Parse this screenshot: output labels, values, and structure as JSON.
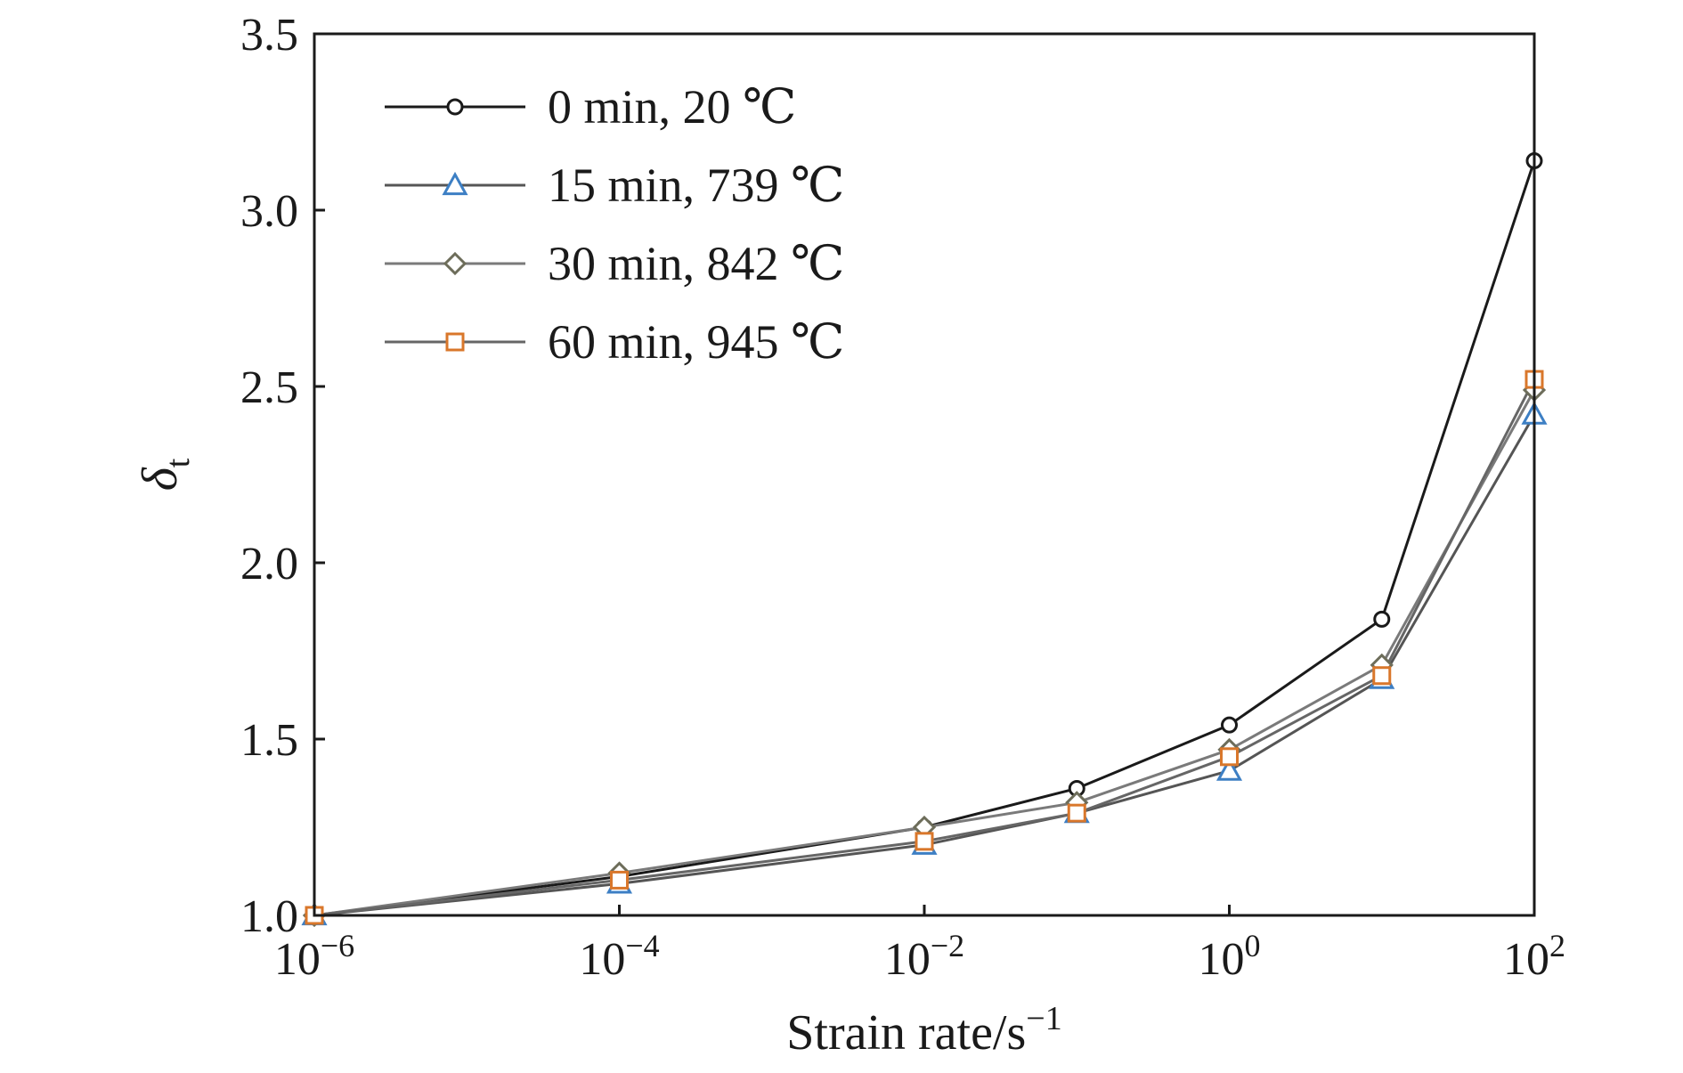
{
  "chart_data": {
    "type": "line",
    "xscale": "log",
    "xlim": [
      1e-06,
      100
    ],
    "ylim": [
      1.0,
      3.5
    ],
    "grid": false,
    "legend_position": "top-left",
    "x_ticks": [
      {
        "value": 1e-06,
        "base": "10",
        "exp": "−6"
      },
      {
        "value": 0.0001,
        "base": "10",
        "exp": "−4"
      },
      {
        "value": 0.01,
        "base": "10",
        "exp": "−2"
      },
      {
        "value": 1,
        "base": "10",
        "exp": "0"
      },
      {
        "value": 100,
        "base": "10",
        "exp": "2"
      }
    ],
    "y_ticks": [
      "1.0",
      "1.5",
      "2.0",
      "2.5",
      "3.0",
      "3.5"
    ],
    "xlabel": {
      "text": "Strain rate/s",
      "sup": "−1"
    },
    "ylabel": {
      "text": "δ",
      "sub": "t"
    },
    "x": [
      1e-06,
      0.0001,
      0.01,
      0.1,
      1,
      10,
      100
    ],
    "series": [
      {
        "name": "0 min, 20 ℃",
        "line_color": "#1a1a1a",
        "marker": "circle",
        "marker_color": "#1a1a1a",
        "values": [
          1.0,
          1.11,
          1.25,
          1.36,
          1.54,
          1.84,
          3.14
        ]
      },
      {
        "name": "15 min, 739 ℃",
        "line_color": "#555555",
        "marker": "triangle",
        "marker_color": "#3d7fc4",
        "values": [
          1.0,
          1.09,
          1.2,
          1.29,
          1.41,
          1.67,
          2.42
        ]
      },
      {
        "name": "30 min, 842 ℃",
        "line_color": "#7a7a7a",
        "marker": "diamond",
        "marker_color": "#6d6d5a",
        "values": [
          1.0,
          1.12,
          1.25,
          1.32,
          1.47,
          1.71,
          2.49
        ]
      },
      {
        "name": "60 min, 945 ℃",
        "line_color": "#666666",
        "marker": "square",
        "marker_color": "#d9772b",
        "values": [
          1.0,
          1.1,
          1.21,
          1.29,
          1.45,
          1.68,
          2.52
        ]
      }
    ]
  }
}
